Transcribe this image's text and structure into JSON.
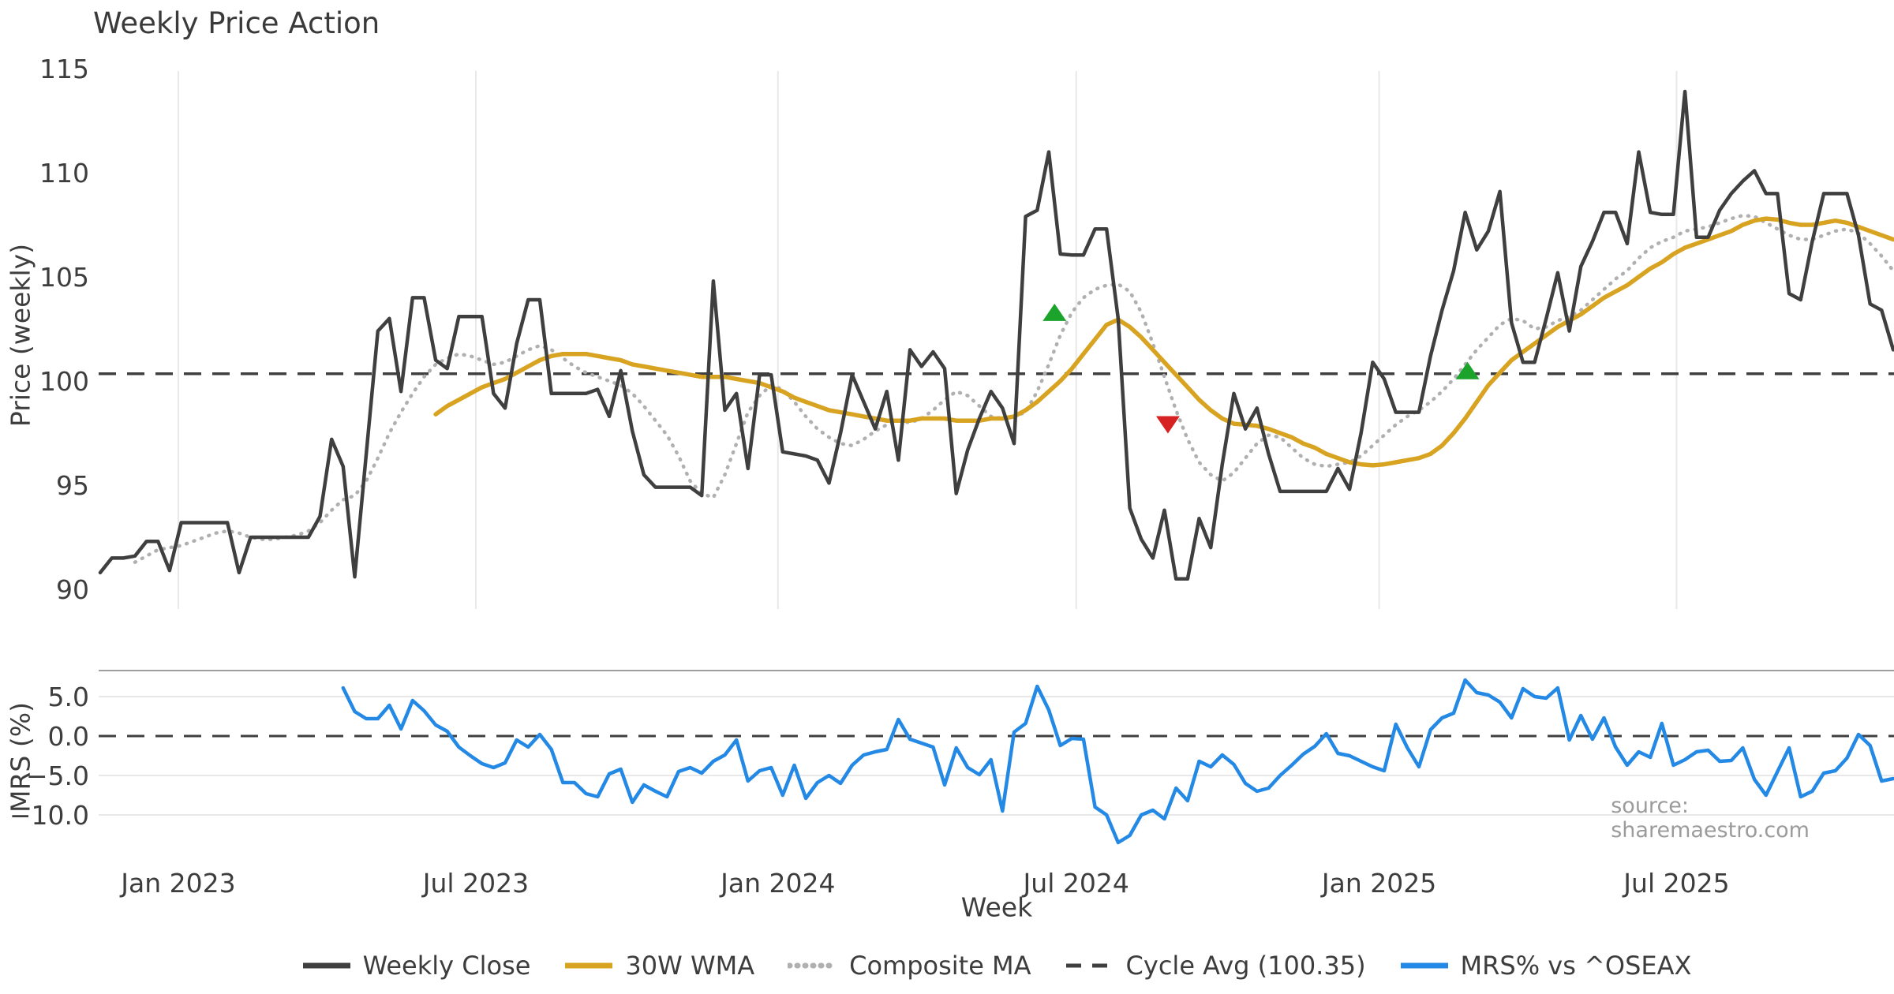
{
  "chart": {
    "title": "Weekly Price Action",
    "xlabel": "Week",
    "source": "source: sharemaestro.com",
    "price_panel": {
      "ylabel": "Price (weekly)"
    },
    "mrs_panel": {
      "ylabel": "MRS (%)"
    },
    "legend": [
      {
        "label": "Weekly Close",
        "style": "solid",
        "color": "#3f3f3f"
      },
      {
        "label": "30W WMA",
        "style": "solid",
        "color": "#d7a321"
      },
      {
        "label": "Composite MA",
        "style": "dotted",
        "color": "#b0b0b0"
      },
      {
        "label": "Cycle Avg (100.35)",
        "style": "dashed",
        "color": "#3f3f3f"
      },
      {
        "label": "MRS% vs ^OSEAX",
        "style": "solid",
        "color": "#2389e5"
      }
    ],
    "colors": {
      "close": "#3f3f3f",
      "wma": "#d7a321",
      "composite": "#b0b0b0",
      "cycle_avg": "#3f3f3f",
      "mrs": "#2389e5",
      "buy_marker": "#1ca32b",
      "sell_marker": "#d62222",
      "grid": "#e8e8e8",
      "panel_spine": "#9e9e9e",
      "text": "#3d3d3d",
      "source_text": "#9b9b9b"
    }
  },
  "chart_data": {
    "type": "line",
    "x_unit": "weeks",
    "x_tick_labels": [
      "Jan 2023",
      "Jul 2023",
      "Jan 2024",
      "Jul 2024",
      "Jan 2025",
      "Jul 2025"
    ],
    "x_tick_week_index": [
      6.75,
      32.47,
      58.59,
      84.37,
      110.56,
      136.27
    ],
    "panels": [
      {
        "id": "price",
        "ylabel": "Price (weekly)",
        "ylim": [
          89.0,
          116.1
        ],
        "yticks": [
          115,
          110,
          105,
          100,
          95,
          90
        ],
        "ytick_labels": [
          "115",
          "110",
          "105",
          "100",
          "95",
          "90"
        ],
        "reference_line": {
          "label": "Cycle Avg",
          "value": 100.35,
          "style": "dashed"
        },
        "series": [
          {
            "name": "Weekly Close",
            "style": "solid",
            "width": 4.5,
            "color": "#3f3f3f",
            "start_index": 0,
            "values": [
              90.8,
              91.5,
              91.5,
              91.6,
              92.3,
              92.3,
              90.9,
              93.2,
              93.2,
              93.2,
              93.2,
              93.2,
              90.8,
              92.5,
              92.5,
              92.5,
              92.5,
              92.5,
              92.5,
              93.5,
              97.2,
              95.9,
              90.6,
              96.5,
              102.4,
              103.0,
              99.5,
              104.0,
              104.0,
              101.0,
              100.6,
              103.1,
              103.1,
              103.1,
              99.4,
              98.7,
              101.8,
              103.9,
              103.9,
              99.4,
              99.4,
              99.4,
              99.4,
              99.6,
              98.3,
              100.5,
              97.6,
              95.5,
              94.9,
              94.9,
              94.9,
              94.9,
              94.5,
              104.8,
              98.6,
              99.4,
              95.8,
              100.3,
              100.3,
              96.6,
              96.5,
              96.4,
              96.2,
              95.1,
              97.5,
              100.3,
              99.0,
              97.7,
              99.5,
              96.2,
              101.5,
              100.7,
              101.4,
              100.6,
              94.6,
              96.7,
              98.2,
              99.5,
              98.7,
              97.0,
              107.9,
              108.2,
              111.0,
              106.1,
              106.05,
              106.05,
              107.3,
              107.3,
              103.0,
              93.9,
              92.4,
              91.5,
              93.8,
              90.5,
              90.5,
              93.4,
              92.0,
              96.0,
              99.4,
              97.7,
              98.7,
              96.5,
              94.7,
              94.7,
              94.7,
              94.7,
              94.7,
              95.8,
              94.8,
              97.5,
              100.9,
              100.1,
              98.5,
              98.5,
              98.5,
              101.2,
              103.4,
              105.3,
              108.1,
              106.3,
              107.2,
              109.1,
              102.8,
              100.9,
              100.9,
              103.0,
              105.2,
              102.4,
              105.5,
              106.7,
              108.1,
              108.1,
              106.6,
              111.0,
              108.1,
              108.0,
              108.0,
              113.9,
              106.9,
              106.9,
              108.2,
              109.0,
              109.6,
              110.1,
              109.0,
              109.0,
              104.2,
              103.9,
              106.7,
              109.0,
              109.0,
              109.0,
              107.0,
              103.7,
              103.4,
              101.5
            ]
          },
          {
            "name": "30W WMA",
            "style": "solid",
            "width": 5.5,
            "color": "#d7a321",
            "start_index": 29,
            "values": [
              98.4,
              98.8,
              99.1,
              99.4,
              99.7,
              99.9,
              100.1,
              100.4,
              100.7,
              101.0,
              101.2,
              101.3,
              101.3,
              101.3,
              101.2,
              101.1,
              101.0,
              100.8,
              100.7,
              100.6,
              100.5,
              100.4,
              100.3,
              100.2,
              100.2,
              100.2,
              100.1,
              100.0,
              99.9,
              99.7,
              99.5,
              99.2,
              99.0,
              98.8,
              98.6,
              98.5,
              98.4,
              98.3,
              98.2,
              98.1,
              98.1,
              98.1,
              98.2,
              98.2,
              98.2,
              98.1,
              98.1,
              98.1,
              98.2,
              98.2,
              98.3,
              98.6,
              99.0,
              99.5,
              100.0,
              100.6,
              101.3,
              102.0,
              102.7,
              102.95,
              102.6,
              102.1,
              101.5,
              100.9,
              100.3,
              99.7,
              99.1,
              98.6,
              98.2,
              97.95,
              97.9,
              97.85,
              97.7,
              97.5,
              97.3,
              97.0,
              96.8,
              96.5,
              96.3,
              96.1,
              96.0,
              95.95,
              96.0,
              96.1,
              96.2,
              96.3,
              96.5,
              96.9,
              97.5,
              98.2,
              99.0,
              99.8,
              100.4,
              101.0,
              101.4,
              101.8,
              102.2,
              102.6,
              102.9,
              103.2,
              103.6,
              104.0,
              104.3,
              104.6,
              105.0,
              105.4,
              105.7,
              106.1,
              106.4,
              106.6,
              106.8,
              107.0,
              107.2,
              107.5,
              107.7,
              107.8,
              107.75,
              107.6,
              107.5,
              107.5,
              107.6,
              107.7,
              107.6,
              107.4,
              107.2,
              107.0,
              106.8
            ]
          },
          {
            "name": "Composite MA",
            "style": "dotted",
            "width": 4.5,
            "color": "#b0b0b0",
            "start_index": 3,
            "values": [
              91.3,
              91.6,
              91.9,
              92.0,
              92.1,
              92.3,
              92.5,
              92.7,
              92.8,
              92.7,
              92.5,
              92.4,
              92.4,
              92.5,
              92.6,
              92.8,
              93.2,
              93.8,
              94.3,
              94.5,
              95.2,
              96.3,
              97.5,
              98.5,
              99.4,
              100.2,
              100.8,
              101.1,
              101.3,
              101.2,
              101.0,
              100.8,
              100.9,
              101.2,
              101.5,
              101.7,
              101.5,
              101.1,
              100.7,
              100.4,
              100.2,
              100.0,
              99.8,
              99.4,
              98.8,
              98.1,
              97.4,
              96.4,
              95.2,
              94.6,
              94.4,
              95.5,
              97.0,
              98.5,
              99.3,
              99.8,
              99.6,
              99.0,
              98.3,
              97.7,
              97.3,
              97.0,
              96.9,
              97.2,
              97.6,
              97.9,
              98.1,
              98.0,
              98.2,
              98.6,
              99.1,
              99.5,
              99.3,
              98.8,
              98.3,
              98.2,
              98.3,
              98.5,
              99.5,
              100.8,
              102.2,
              103.3,
              104.0,
              104.4,
              104.6,
              104.65,
              104.3,
              103.3,
              101.8,
              100.2,
              98.6,
              97.2,
              96.1,
              95.5,
              95.2,
              95.6,
              96.3,
              97.0,
              97.4,
              97.3,
              96.8,
              96.3,
              96.0,
              95.9,
              96.0,
              96.1,
              96.4,
              96.9,
              97.4,
              97.9,
              98.3,
              98.6,
              99.0,
              99.5,
              100.1,
              100.8,
              101.5,
              102.1,
              102.7,
              103.0,
              102.9,
              102.5,
              102.6,
              102.9,
              103.1,
              103.4,
              103.9,
              104.4,
              104.9,
              105.3,
              105.9,
              106.4,
              106.7,
              106.9,
              107.2,
              107.3,
              107.4,
              107.6,
              107.8,
              107.95,
              107.9,
              107.6,
              107.3,
              107.0,
              106.8,
              106.8,
              107.0,
              107.2,
              107.3,
              107.1,
              106.6,
              106.0,
              105.3
            ]
          }
        ],
        "markers": [
          {
            "type": "buy",
            "shape": "triangle-up",
            "week_index": 82.5,
            "price": 103.3,
            "color": "#1ca32b"
          },
          {
            "type": "sell",
            "shape": "triangle-down",
            "week_index": 92.3,
            "price": 97.9,
            "color": "#d62222"
          },
          {
            "type": "buy",
            "shape": "triangle-up",
            "week_index": 118.2,
            "price": 100.5,
            "color": "#1ca32b"
          }
        ]
      },
      {
        "id": "mrs",
        "ylabel": "MRS (%)",
        "ylim": [
          -14.3,
          8.3
        ],
        "yticks": [
          5.0,
          0.0,
          -5.0,
          -10.0
        ],
        "ytick_labels": [
          "5.0",
          "0.0",
          "−5.0",
          "−10.0"
        ],
        "reference_line": {
          "label": "zero",
          "value": 0.0,
          "style": "dashed"
        },
        "series": [
          {
            "name": "MRS% vs ^OSEAX",
            "style": "solid",
            "width": 4.5,
            "color": "#2389e5",
            "start_index": 21,
            "values": [
              6.1,
              3.1,
              2.2,
              2.2,
              3.9,
              0.9,
              4.5,
              3.2,
              1.4,
              0.6,
              -1.4,
              -2.5,
              -3.5,
              -4.0,
              -3.4,
              -0.5,
              -1.4,
              0.2,
              -1.7,
              -5.9,
              -5.9,
              -7.3,
              -7.7,
              -4.8,
              -4.2,
              -8.4,
              -6.2,
              -7.0,
              -7.7,
              -4.5,
              -4.0,
              -4.7,
              -3.2,
              -2.4,
              -0.5,
              -5.7,
              -4.4,
              -4.0,
              -7.5,
              -3.7,
              -7.9,
              -5.9,
              -5.0,
              -6.0,
              -3.7,
              -2.4,
              -2.0,
              -1.7,
              2.1,
              -0.4,
              -0.9,
              -1.4,
              -6.2,
              -1.5,
              -4.0,
              -4.9,
              -3.0,
              -9.5,
              0.5,
              1.6,
              6.3,
              3.3,
              -1.2,
              -0.3,
              -0.4,
              -9.0,
              -10.0,
              -13.5,
              -12.6,
              -10.0,
              -9.4,
              -10.5,
              -6.6,
              -8.2,
              -3.2,
              -3.9,
              -2.4,
              -3.6,
              -6.0,
              -7.0,
              -6.6,
              -5.0,
              -3.7,
              -2.3,
              -1.3,
              0.3,
              -2.2,
              -2.5,
              -3.2,
              -3.9,
              -4.4,
              1.5,
              -1.5,
              -3.9,
              0.8,
              2.3,
              2.9,
              7.1,
              5.5,
              5.2,
              4.3,
              2.3,
              6.0,
              5.0,
              4.8,
              6.1,
              -0.5,
              2.6,
              -0.4,
              2.3,
              -1.4,
              -3.7,
              -2.0,
              -2.7,
              1.6,
              -3.7,
              -3.0,
              -2.0,
              -1.8,
              -3.2,
              -3.1,
              -1.5,
              -5.5,
              -7.5,
              -4.5,
              -1.5,
              -7.7,
              -7.0,
              -4.7,
              -4.4,
              -2.8,
              0.2,
              -1.2,
              -5.7,
              -5.4
            ]
          }
        ]
      }
    ]
  }
}
